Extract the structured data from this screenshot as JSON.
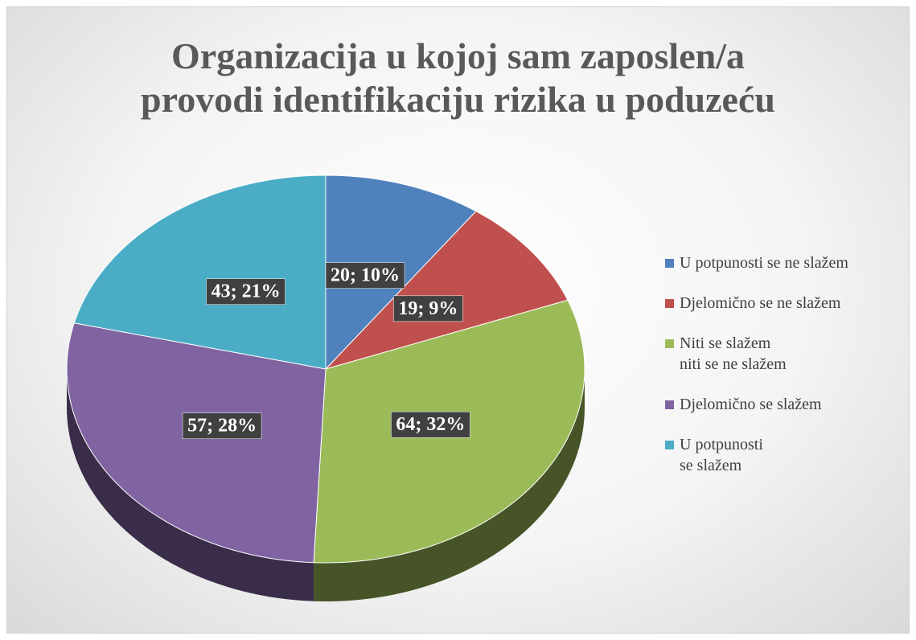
{
  "chart_data": {
    "type": "pie",
    "title": "Organizacija u kojoj sam zaposlen/a\nprovodi identifikaciju rizika u poduzeću",
    "categories": [
      "U potpunosti se ne slažem",
      "Djelomično se ne slažem",
      "Niti se slažem\nniti se ne slažem",
      "Djelomično se slažem",
      "U potpunosti\nse slažem"
    ],
    "values": [
      20,
      19,
      64,
      57,
      43
    ],
    "value_labels": [
      "20; 10%",
      "19; 9%",
      "64; 32%",
      "57; 28%",
      "43; 21%"
    ],
    "colors": [
      "#4f81bd",
      "#c0504d",
      "#9bbb59",
      "#8064a2",
      "#4bacc6"
    ],
    "legend": "right"
  }
}
